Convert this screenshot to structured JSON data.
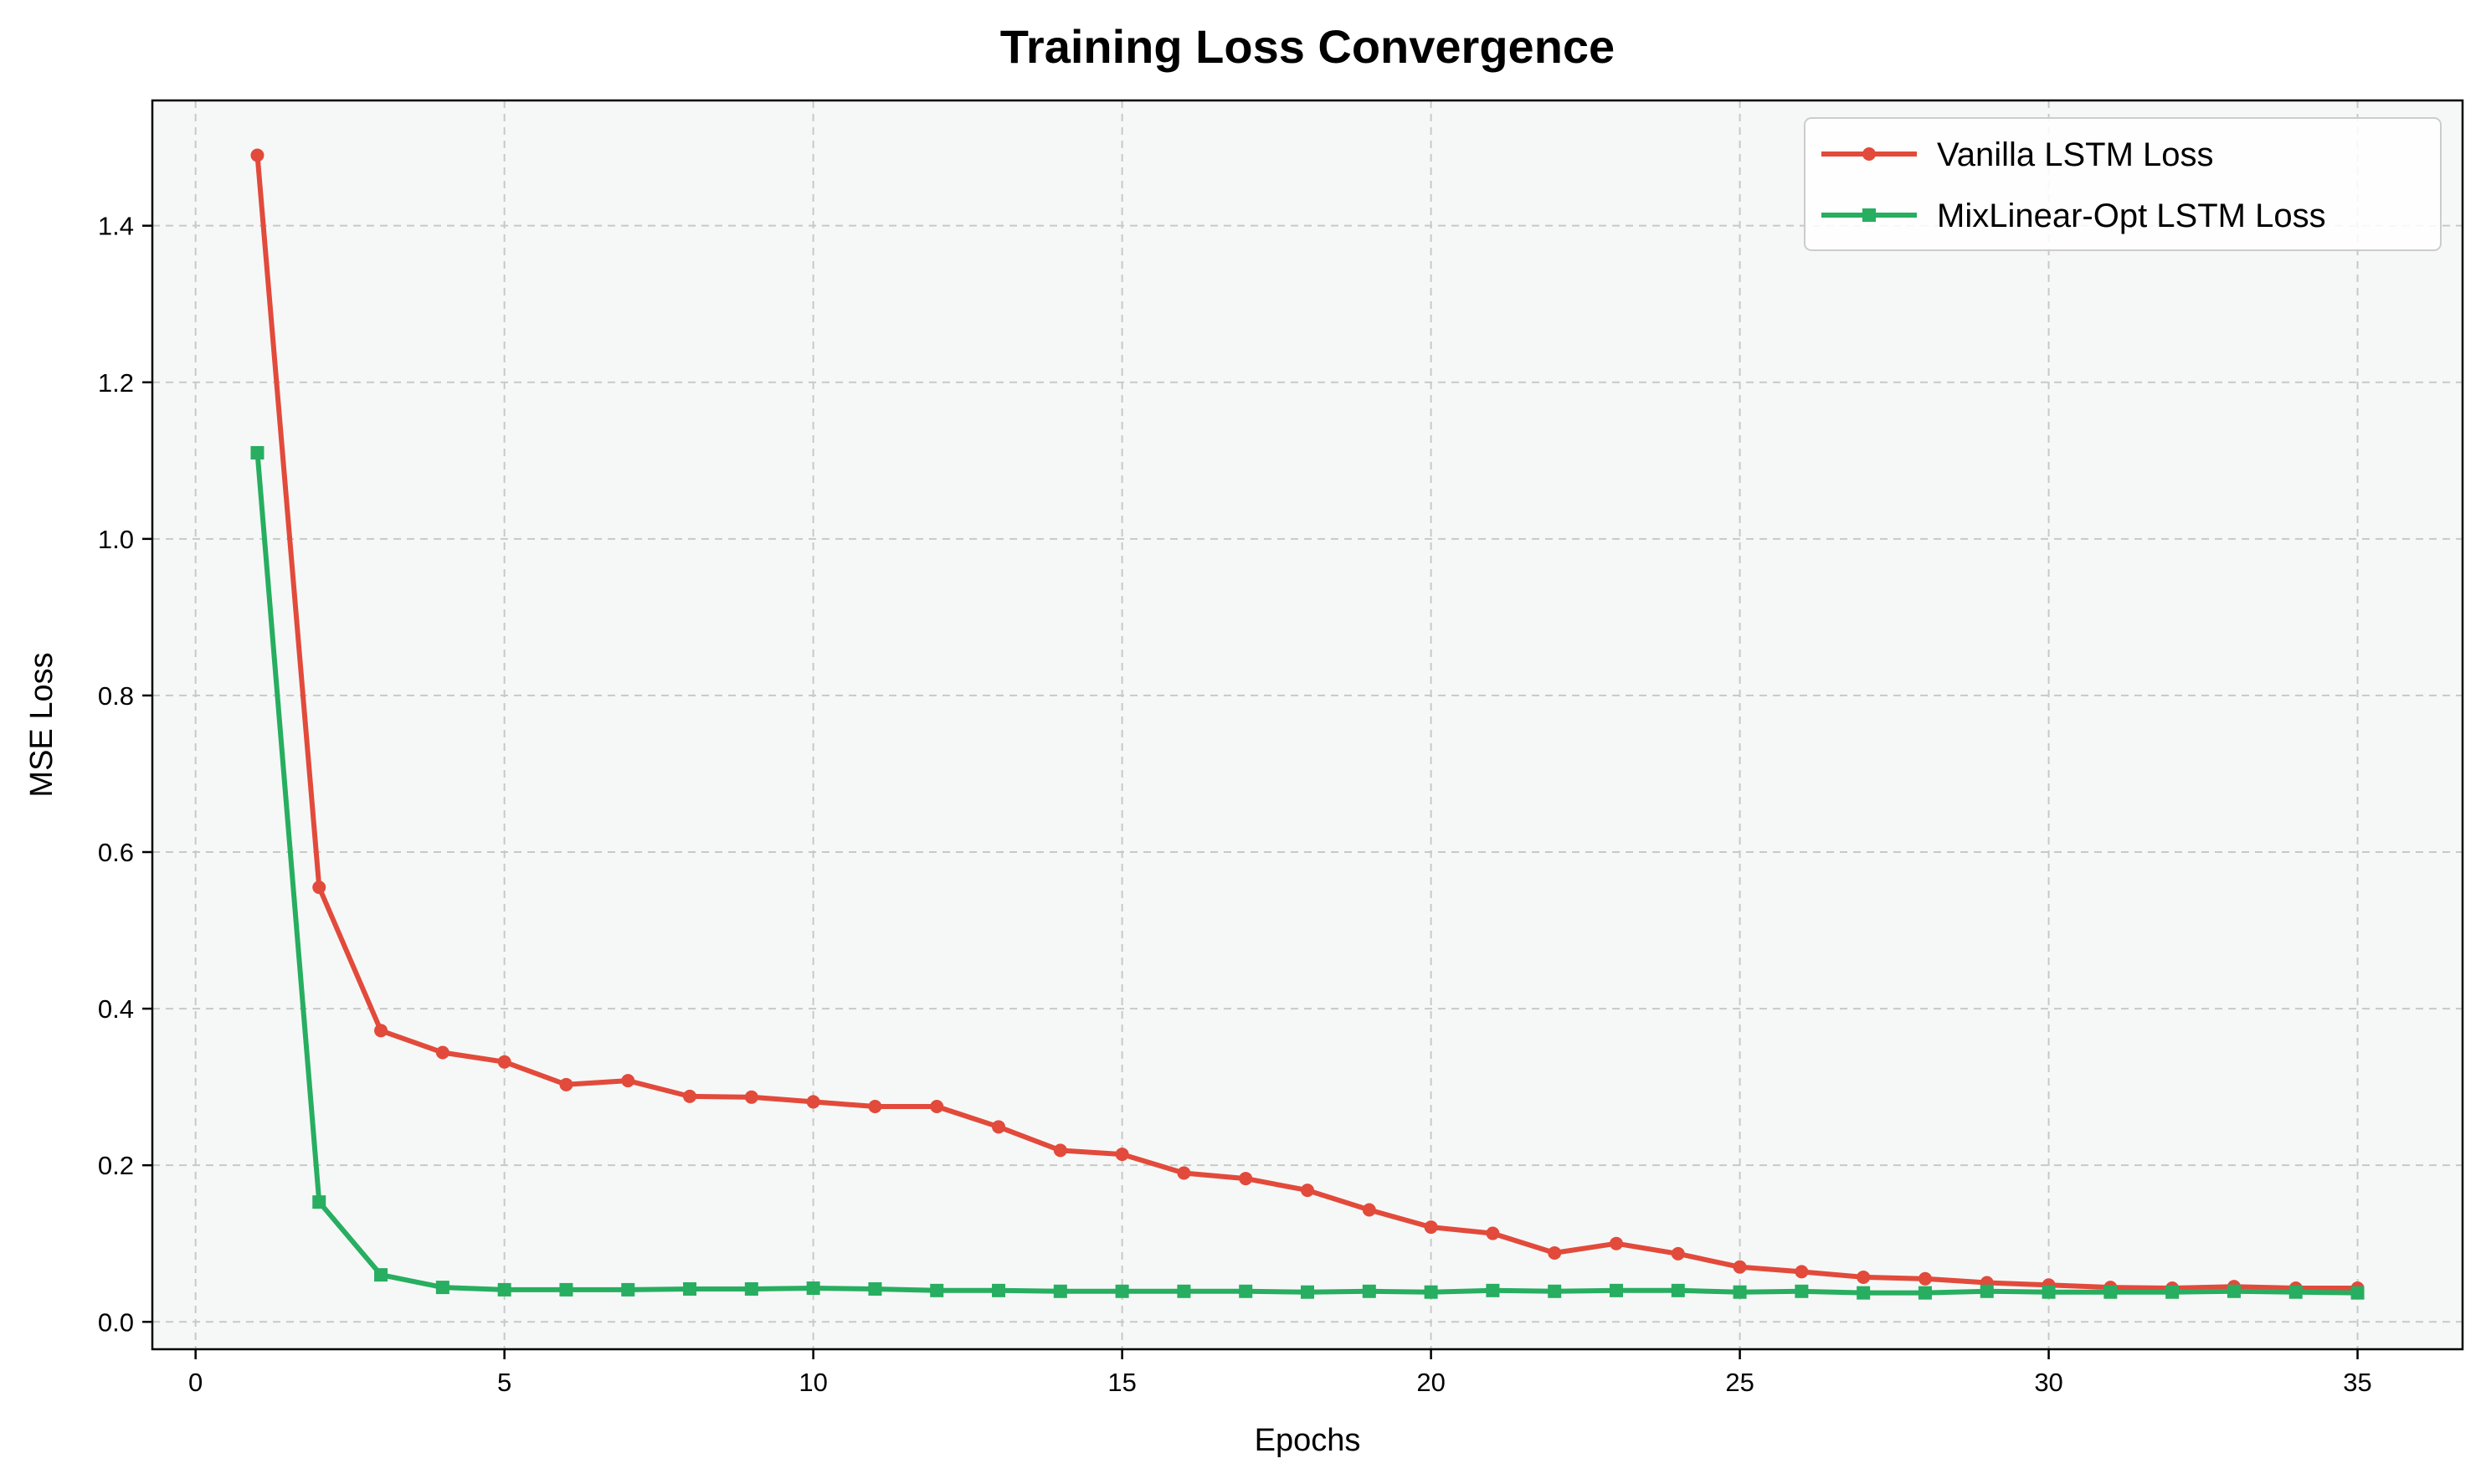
{
  "chart_data": {
    "type": "line",
    "title": "Training Loss Convergence",
    "xlabel": "Epochs",
    "ylabel": "MSE Loss",
    "xlim": [
      -0.7,
      36.7
    ],
    "ylim": [
      -0.035,
      1.56
    ],
    "xticks": [
      0,
      5,
      10,
      15,
      20,
      25,
      30,
      35
    ],
    "xtick_labels": [
      "0",
      "5",
      "10",
      "15",
      "20",
      "25",
      "30",
      "35"
    ],
    "yticks": [
      0.0,
      0.2,
      0.4,
      0.6,
      0.8,
      1.0,
      1.2,
      1.4
    ],
    "ytick_labels": [
      "0.0",
      "0.2",
      "0.4",
      "0.6",
      "0.8",
      "1.0",
      "1.2",
      "1.4"
    ],
    "grid": true,
    "legend_position": "top-right",
    "x": [
      1,
      2,
      3,
      4,
      5,
      6,
      7,
      8,
      9,
      10,
      11,
      12,
      13,
      14,
      15,
      16,
      17,
      18,
      19,
      20,
      21,
      22,
      23,
      24,
      25,
      26,
      27,
      28,
      29,
      30,
      31,
      32,
      33,
      34,
      35
    ],
    "series": [
      {
        "name": "Vanilla LSTM Loss",
        "color": "#e24a3b",
        "marker": "circle",
        "values": [
          1.49,
          0.555,
          0.372,
          0.344,
          0.332,
          0.303,
          0.308,
          0.288,
          0.287,
          0.281,
          0.275,
          0.275,
          0.249,
          0.219,
          0.214,
          0.19,
          0.183,
          0.168,
          0.143,
          0.121,
          0.113,
          0.088,
          0.1,
          0.087,
          0.07,
          0.064,
          0.057,
          0.055,
          0.05,
          0.047,
          0.044,
          0.043,
          0.045,
          0.043,
          0.043
        ]
      },
      {
        "name": "MixLinear-Opt LSTM Loss",
        "color": "#27ae60",
        "marker": "square",
        "values": [
          1.11,
          0.153,
          0.06,
          0.044,
          0.041,
          0.041,
          0.041,
          0.042,
          0.042,
          0.043,
          0.042,
          0.04,
          0.04,
          0.039,
          0.039,
          0.039,
          0.039,
          0.038,
          0.039,
          0.038,
          0.04,
          0.039,
          0.04,
          0.04,
          0.038,
          0.039,
          0.037,
          0.037,
          0.039,
          0.038,
          0.038,
          0.038,
          0.039,
          0.038,
          0.037
        ]
      }
    ]
  },
  "colors": {
    "plot_background": "#f6f8f7",
    "axes": "#000000"
  }
}
